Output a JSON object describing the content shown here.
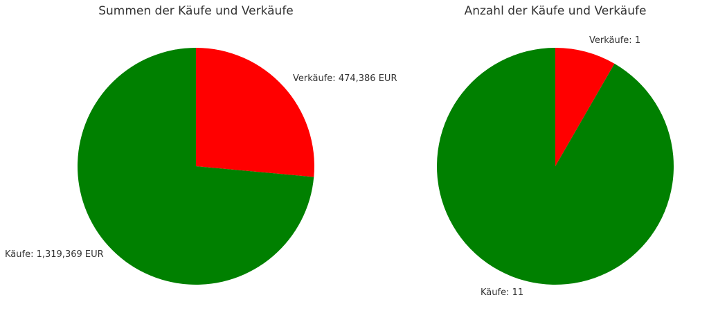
{
  "chart_data": [
    {
      "type": "pie",
      "title": "Summen der Käufe und Verkäufe",
      "start_angle_deg": 90,
      "direction": "clockwise",
      "slices": [
        {
          "label": "Verkäufe: 474,386 EUR",
          "value": 474386,
          "color": "#ff0000"
        },
        {
          "label": "Käufe: 1,319,369 EUR",
          "value": 1319369,
          "color": "#008000"
        }
      ]
    },
    {
      "type": "pie",
      "title": "Anzahl der Käufe und Verkäufe",
      "start_angle_deg": 90,
      "direction": "clockwise",
      "slices": [
        {
          "label": "Verkäufe: 1",
          "value": 1,
          "color": "#ff0000"
        },
        {
          "label": "Käufe: 11",
          "value": 11,
          "color": "#008000"
        }
      ]
    }
  ]
}
